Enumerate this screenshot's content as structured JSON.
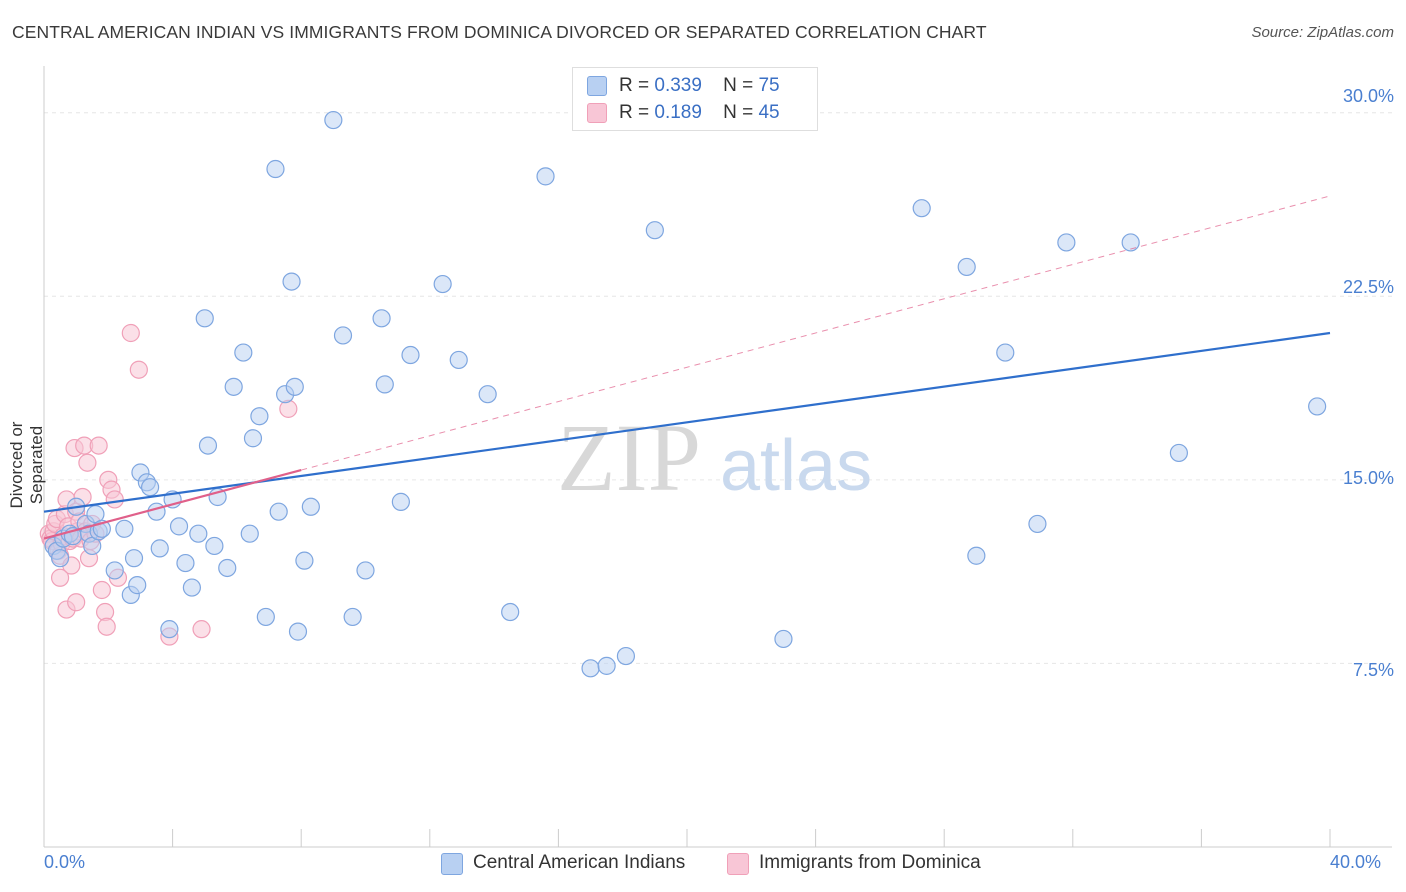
{
  "title": "CENTRAL AMERICAN INDIAN VS IMMIGRANTS FROM DOMINICA DIVORCED OR SEPARATED CORRELATION CHART",
  "source": "Source: ZipAtlas.com",
  "watermark": {
    "zip": "ZIP",
    "atlas": "atlas"
  },
  "legend": {
    "series1": {
      "r_label": "R =",
      "r_value": "0.339",
      "n_label": "N =",
      "n_value": "75"
    },
    "series2": {
      "r_label": "R =",
      "r_value": "0.189",
      "n_label": "N =",
      "n_value": "45"
    }
  },
  "colors": {
    "blue": "#7ea6e0",
    "blue_fill": "#b8d0f2",
    "blue_line": "#2f6fcc",
    "pink": "#f0a0b8",
    "pink_fill": "#f8c6d6",
    "pink_line": "#e0608a"
  },
  "chart_data": {
    "type": "scatter",
    "title": "CENTRAL AMERICAN INDIAN VS IMMIGRANTS FROM DOMINICA DIVORCED OR SEPARATED CORRELATION CHART",
    "xlabel": "",
    "ylabel": "Divorced or Separated",
    "xlim": [
      0,
      40
    ],
    "ylim": [
      0,
      31.5
    ],
    "x_tick_labels": [
      "0.0%",
      "40.0%"
    ],
    "y_ticks": [
      7.5,
      15.0,
      22.5,
      30.0
    ],
    "y_tick_labels": [
      "7.5%",
      "15.0%",
      "22.5%",
      "30.0%"
    ],
    "series": [
      {
        "name": "Central American Indians",
        "r": 0.339,
        "n": 75,
        "trend": {
          "x": [
            0,
            40
          ],
          "y": [
            13.7,
            21.0
          ]
        },
        "points": [
          [
            0.3,
            12.3
          ],
          [
            0.4,
            12.1
          ],
          [
            0.5,
            11.8
          ],
          [
            0.6,
            12.6
          ],
          [
            0.8,
            12.8
          ],
          [
            0.9,
            12.7
          ],
          [
            1.0,
            13.9
          ],
          [
            1.3,
            13.2
          ],
          [
            1.4,
            12.8
          ],
          [
            1.5,
            12.3
          ],
          [
            1.6,
            13.6
          ],
          [
            1.7,
            12.9
          ],
          [
            1.8,
            13.0
          ],
          [
            2.2,
            11.3
          ],
          [
            2.5,
            13.0
          ],
          [
            2.7,
            10.3
          ],
          [
            2.8,
            11.8
          ],
          [
            2.9,
            10.7
          ],
          [
            3.0,
            15.3
          ],
          [
            3.2,
            14.9
          ],
          [
            3.3,
            14.7
          ],
          [
            3.5,
            13.7
          ],
          [
            3.6,
            12.2
          ],
          [
            3.9,
            8.9
          ],
          [
            4.0,
            14.2
          ],
          [
            4.2,
            13.1
          ],
          [
            4.4,
            11.6
          ],
          [
            4.6,
            10.6
          ],
          [
            4.8,
            12.8
          ],
          [
            5.0,
            21.6
          ],
          [
            5.1,
            16.4
          ],
          [
            5.3,
            12.3
          ],
          [
            5.4,
            14.3
          ],
          [
            5.7,
            11.4
          ],
          [
            5.9,
            18.8
          ],
          [
            6.2,
            20.2
          ],
          [
            6.4,
            12.8
          ],
          [
            6.5,
            16.7
          ],
          [
            6.7,
            17.6
          ],
          [
            6.9,
            9.4
          ],
          [
            7.3,
            13.7
          ],
          [
            7.5,
            18.5
          ],
          [
            7.7,
            23.1
          ],
          [
            7.8,
            18.8
          ],
          [
            7.9,
            8.8
          ],
          [
            8.1,
            11.7
          ],
          [
            8.3,
            13.9
          ],
          [
            9.0,
            29.7
          ],
          [
            9.3,
            20.9
          ],
          [
            9.6,
            9.4
          ],
          [
            10.0,
            11.3
          ],
          [
            10.5,
            21.6
          ],
          [
            10.6,
            18.9
          ],
          [
            11.1,
            14.1
          ],
          [
            11.4,
            20.1
          ],
          [
            12.4,
            23.0
          ],
          [
            12.9,
            19.9
          ],
          [
            13.8,
            18.5
          ],
          [
            14.5,
            9.6
          ],
          [
            15.6,
            27.4
          ],
          [
            17.0,
            7.3
          ],
          [
            17.5,
            7.4
          ],
          [
            18.1,
            7.8
          ],
          [
            19.0,
            25.2
          ],
          [
            7.2,
            27.7
          ],
          [
            23.0,
            8.5
          ],
          [
            27.3,
            26.1
          ],
          [
            28.7,
            23.7
          ],
          [
            29.0,
            11.9
          ],
          [
            29.9,
            20.2
          ],
          [
            30.9,
            13.2
          ],
          [
            31.8,
            24.7
          ],
          [
            33.8,
            24.7
          ],
          [
            35.3,
            16.1
          ],
          [
            39.6,
            18.0
          ]
        ]
      },
      {
        "name": "Immigrants from Dominica",
        "r": 0.189,
        "n": 45,
        "trend": {
          "x": [
            0,
            8
          ],
          "y": [
            12.6,
            15.4
          ]
        },
        "points": [
          [
            0.15,
            12.8
          ],
          [
            0.2,
            12.6
          ],
          [
            0.25,
            12.5
          ],
          [
            0.3,
            12.9
          ],
          [
            0.35,
            13.2
          ],
          [
            0.4,
            13.4
          ],
          [
            0.45,
            12.1
          ],
          [
            0.5,
            11.9
          ],
          [
            0.55,
            12.4
          ],
          [
            0.6,
            12.7
          ],
          [
            0.65,
            13.6
          ],
          [
            0.7,
            14.2
          ],
          [
            0.75,
            13.1
          ],
          [
            0.8,
            12.5
          ],
          [
            0.85,
            11.5
          ],
          [
            0.9,
            12.6
          ],
          [
            0.95,
            16.3
          ],
          [
            1.0,
            13.7
          ],
          [
            1.05,
            12.9
          ],
          [
            1.1,
            13.3
          ],
          [
            1.15,
            12.6
          ],
          [
            1.2,
            14.3
          ],
          [
            1.25,
            16.4
          ],
          [
            1.3,
            12.9
          ],
          [
            1.35,
            15.7
          ],
          [
            1.4,
            11.8
          ],
          [
            1.45,
            12.5
          ],
          [
            1.5,
            13.2
          ],
          [
            1.6,
            12.8
          ],
          [
            1.7,
            16.4
          ],
          [
            1.8,
            10.5
          ],
          [
            1.9,
            9.6
          ],
          [
            1.95,
            9.0
          ],
          [
            2.0,
            15.0
          ],
          [
            2.1,
            14.6
          ],
          [
            2.2,
            14.2
          ],
          [
            2.3,
            11.0
          ],
          [
            0.5,
            11.0
          ],
          [
            0.7,
            9.7
          ],
          [
            1.0,
            10.0
          ],
          [
            2.7,
            21.0
          ],
          [
            2.95,
            19.5
          ],
          [
            3.9,
            8.6
          ],
          [
            4.9,
            8.9
          ],
          [
            7.6,
            17.9
          ]
        ]
      }
    ]
  }
}
